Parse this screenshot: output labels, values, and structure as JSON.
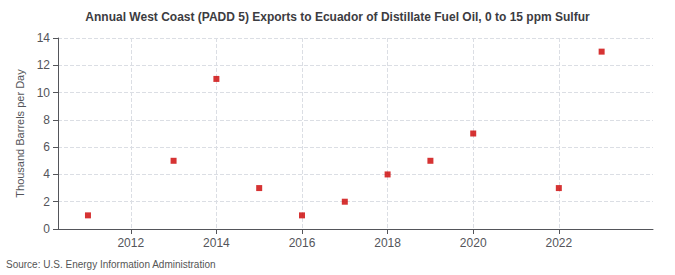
{
  "chart_data": {
    "type": "scatter",
    "title": "Annual West Coast (PADD 5) Exports to Ecuador of Distillate Fuel Oil, 0 to 15 ppm Sulfur",
    "ylabel": "Thousand Barrels per Day",
    "annotation": "Source: U.S. Energy Information Administration",
    "x": [
      2011,
      2013,
      2014,
      2015,
      2016,
      2017,
      2018,
      2019,
      2020,
      2022,
      2023
    ],
    "values": [
      1,
      5,
      11,
      3,
      1,
      2,
      4,
      5,
      7,
      3,
      13
    ],
    "color": "#cc0000",
    "marker": "square",
    "xlim": [
      2010.3,
      2024.2
    ],
    "xticks": [
      2012,
      2014,
      2016,
      2018,
      2020,
      2022
    ],
    "ylim": [
      0,
      14
    ],
    "yticks": [
      0,
      2,
      4,
      6,
      8,
      10,
      12,
      14
    ],
    "grid": true
  }
}
